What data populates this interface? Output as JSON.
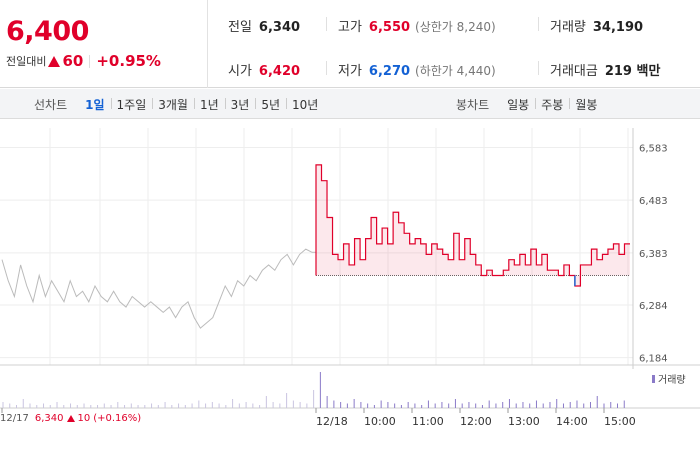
{
  "quote": {
    "price": "6,400",
    "change_label": "전일대비",
    "change_value": "60",
    "change_pct": "+0.95%",
    "prev_close_label": "전일",
    "prev_close": "6,340",
    "high_label": "고가",
    "high": "6,550",
    "upper_limit": "(상한가 8,240)",
    "volume_label": "거래량",
    "volume": "34,190",
    "open_label": "시가",
    "open": "6,420",
    "low_label": "저가",
    "low": "6,270",
    "lower_limit": "(하한가 4,440)",
    "value_label": "거래대금",
    "value": "219 백만"
  },
  "tabs": {
    "line_label": "선차트",
    "line": [
      "1일",
      "1주일",
      "3개월",
      "1년",
      "3년",
      "5년",
      "10년"
    ],
    "candle_label": "봉차트",
    "candle": [
      "일봉",
      "주봉",
      "월봉"
    ]
  },
  "colors": {
    "up": "#e0002a",
    "down": "#1361d4",
    "prev": "#bbbbbb",
    "volume": "#8a7ac8"
  },
  "footer": {
    "date": "12/17",
    "price": "6,340",
    "change": "10",
    "pct": "(+0.16%)"
  },
  "chart_data": {
    "type": "line",
    "y_ticks": [
      "6,583",
      "6,483",
      "6,383",
      "6,284",
      "6,184"
    ],
    "y_tick_values": [
      6583,
      6483,
      6383,
      6284,
      6184
    ],
    "x_labels": [
      "12/17",
      "12/18",
      "10:00",
      "11:00",
      "12:00",
      "13:00",
      "14:00",
      "15:00"
    ],
    "volume_legend": "거래량",
    "base_price": 6340,
    "prev_day": [
      6370,
      6330,
      6300,
      6360,
      6320,
      6290,
      6340,
      6300,
      6330,
      6310,
      6290,
      6330,
      6300,
      6310,
      6290,
      6320,
      6300,
      6290,
      6310,
      6290,
      6280,
      6300,
      6290,
      6280,
      6290,
      6280,
      6270,
      6280,
      6260,
      6280,
      6290,
      6260,
      6240,
      6250,
      6260,
      6290,
      6320,
      6300,
      6330,
      6320,
      6340,
      6330,
      6350,
      6360,
      6350,
      6370,
      6380,
      6360,
      6380,
      6390,
      6384
    ],
    "today": [
      6550,
      6520,
      6450,
      6380,
      6370,
      6400,
      6360,
      6410,
      6370,
      6410,
      6450,
      6400,
      6430,
      6400,
      6460,
      6440,
      6420,
      6400,
      6410,
      6400,
      6380,
      6400,
      6390,
      6380,
      6370,
      6420,
      6370,
      6410,
      6380,
      6360,
      6340,
      6350,
      6340,
      6340,
      6350,
      6370,
      6360,
      6380,
      6360,
      6390,
      6360,
      6380,
      6350,
      6350,
      6340,
      6360,
      6340,
      6320,
      6360,
      6360,
      6390,
      6370,
      6380,
      6390,
      6400,
      6380,
      6400,
      6400
    ],
    "volume": [
      4,
      3,
      2,
      6,
      3,
      2,
      3,
      2,
      4,
      2,
      3,
      2,
      3,
      2,
      2,
      3,
      2,
      4,
      2,
      3,
      2,
      2,
      3,
      2,
      4,
      2,
      3,
      2,
      3,
      5,
      3,
      4,
      3,
      2,
      6,
      3,
      4,
      3,
      2,
      8,
      4,
      3,
      10,
      5,
      4,
      3,
      12,
      24,
      8,
      5,
      4,
      3,
      6,
      4,
      3,
      2,
      5,
      4,
      3,
      2,
      4,
      3,
      2,
      5,
      3,
      4,
      3,
      6,
      3,
      4,
      3,
      2,
      5,
      3,
      4,
      6,
      3,
      4,
      3,
      5,
      3,
      4,
      6,
      3,
      4,
      5,
      3,
      4,
      8,
      3,
      4,
      3,
      5
    ]
  }
}
